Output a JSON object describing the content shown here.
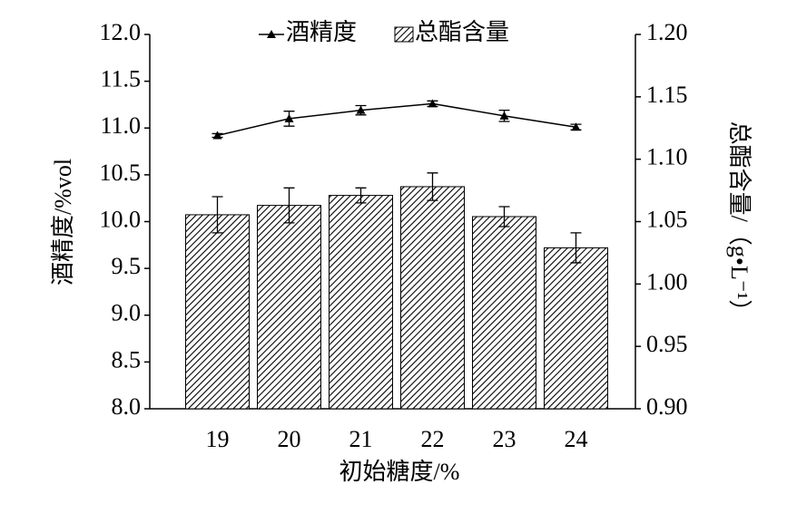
{
  "chart_data": {
    "type": "bar",
    "categories": [
      "19",
      "20",
      "21",
      "22",
      "23",
      "24"
    ],
    "series": [
      {
        "name": "酒精度",
        "type": "line",
        "color": "#000000",
        "values": [
          10.92,
          11.1,
          11.19,
          11.26,
          11.13,
          11.01
        ],
        "errors": [
          0.02,
          0.08,
          0.05,
          0.03,
          0.06,
          0.03
        ]
      },
      {
        "name": "总酯含量",
        "type": "bar",
        "axis": "y2",
        "color": "#000000",
        "values": [
          1.0555,
          1.063,
          1.071,
          1.078,
          1.054,
          1.029
        ],
        "errors": [
          0.0145,
          0.014,
          0.006,
          0.011,
          0.008,
          0.012
        ]
      }
    ],
    "x_label": "初始糖度/%",
    "y_label": "酒精度/%vol",
    "y2_label": "总酯含量/（g•L⁻¹）",
    "ylim": [
      8,
      12
    ],
    "yticks": [
      {
        "value": 8,
        "label": "8.0"
      },
      {
        "value": 8.5,
        "label": "8.5"
      },
      {
        "value": 9,
        "label": "9.0"
      },
      {
        "value": 9.5,
        "label": "9.5"
      },
      {
        "value": 10,
        "label": "10.0"
      },
      {
        "value": 10.5,
        "label": "10.5"
      },
      {
        "value": 11,
        "label": "11.0"
      },
      {
        "value": 11.5,
        "label": "11.5"
      },
      {
        "value": 12,
        "label": "12.0"
      }
    ],
    "y2lim": [
      0.9,
      1.2
    ],
    "y2ticks": [
      {
        "value": 0.9,
        "label": "0.90"
      },
      {
        "value": 0.95,
        "label": "0.95"
      },
      {
        "value": 1.0,
        "label": "1.00"
      },
      {
        "value": 1.05,
        "label": "1.05"
      },
      {
        "value": 1.1,
        "label": "1.10"
      },
      {
        "value": 1.15,
        "label": "1.15"
      },
      {
        "value": 1.2,
        "label": "1.20"
      }
    ],
    "legend": "top",
    "grid": false
  }
}
